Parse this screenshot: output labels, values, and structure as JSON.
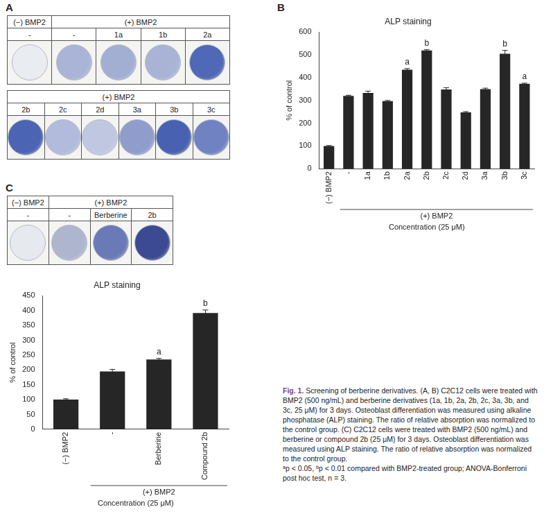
{
  "chart_data": [
    {
      "type": "bar",
      "panel": "B",
      "title": "ALP staining",
      "y_label": "% of control",
      "x_label": "Concentration (25 μM)",
      "categories": [
        "(−) BMP2",
        "-",
        "1a",
        "1b",
        "2a",
        "2b",
        "2c",
        "2d",
        "3a",
        "3b",
        "3c"
      ],
      "values": [
        100,
        320,
        333,
        297,
        435,
        520,
        348,
        248,
        350,
        505,
        373
      ],
      "errors": [
        2,
        3,
        8,
        3,
        5,
        3,
        8,
        3,
        4,
        15,
        3
      ],
      "significance": [
        null,
        null,
        null,
        null,
        "a",
        "b",
        null,
        null,
        null,
        "b",
        "a"
      ],
      "group": {
        "label": "(+) BMP2",
        "categories": [
          "-",
          "1a",
          "1b",
          "2a",
          "2b",
          "2c",
          "2d",
          "3a",
          "3b",
          "3c"
        ]
      },
      "color": "#262626",
      "ylim": [
        0,
        600
      ],
      "yticks": [
        0,
        100,
        200,
        300,
        400,
        500,
        600
      ],
      "grid": false
    },
    {
      "type": "bar",
      "panel": "C",
      "title": "ALP staining",
      "y_label": "% of control",
      "x_label": "Concentration (25 μM)",
      "categories": [
        "(−) BMP2",
        "-",
        "Berberine",
        "Compound 2b"
      ],
      "values": [
        100,
        195,
        235,
        392
      ],
      "errors": [
        3,
        7,
        4,
        10
      ],
      "significance": [
        null,
        null,
        "a",
        "b"
      ],
      "group": {
        "label": "(+) BMP2",
        "categories": [
          "-",
          "Berberine",
          "Compound 2b"
        ]
      },
      "color": "#262626",
      "ylim": [
        0,
        450
      ],
      "yticks": [
        0,
        50,
        100,
        150,
        200,
        250,
        300,
        350,
        400,
        450
      ],
      "grid": false
    }
  ],
  "plates": [
    {
      "panel": "A",
      "rows": [
        [
          {
            "label": "(−) BMP2",
            "wells": [
              {
                "label": "-",
                "color": "#e9ecf0"
              }
            ]
          },
          {
            "label": "(+) BMP2",
            "wells": [
              {
                "label": "-",
                "color": "#a9b4d6"
              },
              {
                "label": "1a",
                "color": "#a3aed3"
              },
              {
                "label": "1b",
                "color": "#a8b3d6"
              },
              {
                "label": "2a",
                "color": "#4f68b7"
              }
            ]
          }
        ],
        [
          {
            "label": "(+) BMP2",
            "wells": [
              {
                "label": "2b",
                "color": "#4b64b3"
              },
              {
                "label": "2c",
                "color": "#b2bbdb"
              },
              {
                "label": "2d",
                "color": "#c0c7e0"
              },
              {
                "label": "3a",
                "color": "#8e9dcc"
              },
              {
                "label": "3b",
                "color": "#4862b1"
              },
              {
                "label": "3c",
                "color": "#7082c1"
              }
            ]
          }
        ]
      ]
    },
    {
      "panel": "C",
      "rows": [
        [
          {
            "label": "(−) BMP2",
            "wells": [
              {
                "label": "-",
                "color": "#e6e9ee"
              }
            ]
          },
          {
            "label": "(+) BMP2",
            "wells": [
              {
                "label": "-",
                "color": "#aeb5cf"
              },
              {
                "label": "Berberine",
                "color": "#6a7ab7"
              },
              {
                "label": "2b",
                "color": "#3b4a92"
              }
            ]
          }
        ]
      ]
    }
  ],
  "caption": {
    "label": "Fig. 1.",
    "text": "Screening of berberine derivatives. (A, B) C2C12 cells were treated with BMP2 (500 ng/mL) and berberine derivatives (1a, 1b, 2a, 2b, 2c, 3a, 3b, and 3c, 25 μM) for 3 days. Osteoblast differentiation was measured using alkaline phosphatase (ALP) staining. The ratio of relative absorption was normalized to the control group. (C) C2C12 cells were treated with BMP2 (500 ng/mL) and berberine or compound 2b (25 μM) for 3 days. Osteoblast differentiation was measured using ALP staining. The ratio of relative absorption was normalized to the control group.",
    "notes": "ᵃp < 0.05, ᵇp < 0.01 compared with BMP2-treated group; ANOVA-Bonferroni post hoc test, n = 3."
  }
}
